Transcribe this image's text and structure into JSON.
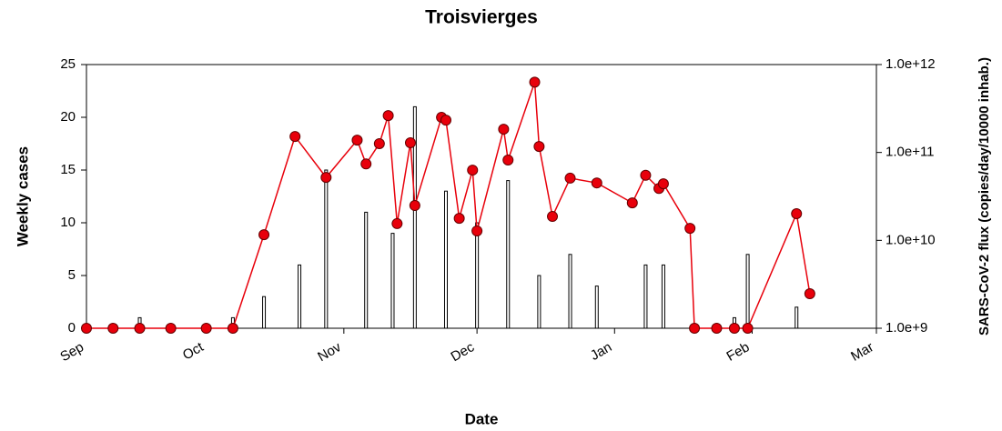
{
  "chart_data": {
    "type": "bar-line",
    "title": "Troisvierges",
    "x_label": "Date",
    "y_label": "Weekly cases",
    "y2_label": "SARS-CoV-2 flux (copies/day/10000 inhab.)",
    "xlim": [
      3,
      181
    ],
    "xticks": [
      {
        "value": 3,
        "label": "Sep"
      },
      {
        "value": 30,
        "label": "Oct"
      },
      {
        "value": 61,
        "label": "Nov"
      },
      {
        "value": 91,
        "label": "Dec"
      },
      {
        "value": 122,
        "label": "Jan"
      },
      {
        "value": 153,
        "label": "Feb"
      },
      {
        "value": 181,
        "label": "Mar"
      }
    ],
    "ylim": [
      0,
      25
    ],
    "yticks": [
      0,
      5,
      10,
      15,
      20,
      25
    ],
    "y2lim": [
      1000000000.0,
      1000000000000.0
    ],
    "y2scale": "log",
    "y2ticks": [
      {
        "value": 1000000000.0,
        "label": "1.0e+9"
      },
      {
        "value": 10000000000.0,
        "label": "1.0e+10"
      },
      {
        "value": 100000000000.0,
        "label": "1.0e+11"
      },
      {
        "value": 1000000000000.0,
        "label": "1.0e+12"
      }
    ],
    "series": [
      {
        "name": "Weekly cases",
        "type": "bar",
        "axis": "y",
        "color": "#ffffff",
        "x": [
          15,
          36,
          43,
          51,
          57,
          66,
          72,
          77,
          84,
          91,
          98,
          105,
          112,
          118,
          129,
          133,
          149,
          152,
          163
        ],
        "values": [
          1,
          1,
          3,
          6,
          15,
          11,
          9,
          21,
          13,
          10,
          14,
          5,
          7,
          4,
          6,
          6,
          1,
          7,
          2
        ]
      },
      {
        "name": "SARS-CoV-2 flux",
        "type": "line",
        "axis": "y2",
        "color": "#e8000b",
        "x": [
          3,
          9,
          15,
          22,
          30,
          36,
          43,
          50,
          57,
          64,
          66,
          69,
          71,
          73,
          76,
          77,
          83,
          84,
          87,
          90,
          91,
          97,
          98,
          104,
          105,
          108,
          112,
          118,
          126,
          129,
          132,
          133,
          139,
          140,
          145,
          149,
          152,
          163,
          166
        ],
        "values": [
          1000000000.0,
          1000000000.0,
          1000000000.0,
          1000000000.0,
          1000000000.0,
          1000000000.0,
          11600000000.0,
          152000000000.0,
          52000000000.0,
          138000000000.0,
          74000000000.0,
          126000000000.0,
          263000000000.0,
          15500000000.0,
          129000000000.0,
          24900000000.0,
          251000000000.0,
          233000000000.0,
          17800000000.0,
          63000000000.0,
          12800000000.0,
          184000000000.0,
          82000000000.0,
          630000000000.0,
          117000000000.0,
          18700000000.0,
          51000000000.0,
          45000000000.0,
          26700000000.0,
          55000000000.0,
          39000000000.0,
          44000000000.0,
          13700000000.0,
          1000000000.0,
          1000000000.0,
          1000000000.0,
          1000000000.0,
          20100000000.0,
          2470000000.0
        ]
      }
    ]
  }
}
